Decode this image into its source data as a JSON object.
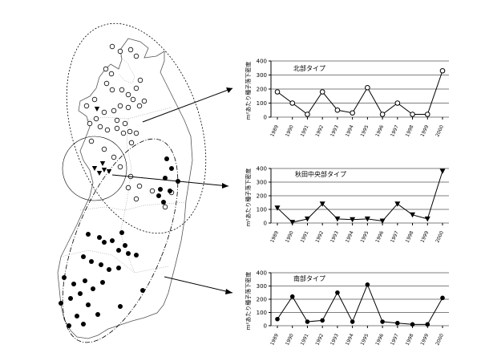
{
  "chart_data": [
    {
      "type": "line",
      "title": "北部タイプ",
      "ylabel": "m²あたり種子落下密度",
      "categories": [
        "1989",
        "1990",
        "1991",
        "1992",
        "1993",
        "1994",
        "1995",
        "1996",
        "1997",
        "1998",
        "1999",
        "2000"
      ],
      "ylim": [
        0,
        400
      ],
      "yticks": [
        0,
        100,
        200,
        300,
        400
      ],
      "marker": "circle-open",
      "values": [
        180,
        100,
        20,
        180,
        50,
        30,
        210,
        20,
        100,
        20,
        20,
        330
      ],
      "grid": true
    },
    {
      "type": "line",
      "title": "秋田中央部タイプ",
      "ylabel": "m²あたり種子落下密度",
      "categories": [
        "1989",
        "1990",
        "1991",
        "1992",
        "1993",
        "1994",
        "1995",
        "1996",
        "1997",
        "1998",
        "1999",
        "2000"
      ],
      "ylim": [
        0,
        400
      ],
      "yticks": [
        0,
        100,
        200,
        300,
        400
      ],
      "marker": "triangle-down",
      "values": [
        110,
        5,
        30,
        140,
        30,
        25,
        30,
        15,
        140,
        60,
        30,
        380
      ],
      "grid": true
    },
    {
      "type": "line",
      "title": "南部タイプ",
      "ylabel": "m²あたり種子落下密度",
      "categories": [
        "1989",
        "1990",
        "1991",
        "1992",
        "1993",
        "1994",
        "1995",
        "1996",
        "1997",
        "1998",
        "1999",
        "2000"
      ],
      "ylim": [
        0,
        400
      ],
      "yticks": [
        0,
        100,
        200,
        300,
        400
      ],
      "marker": "circle-filled",
      "values": [
        50,
        220,
        30,
        40,
        250,
        30,
        310,
        30,
        20,
        10,
        10,
        210
      ],
      "grid": true
    }
  ],
  "map": {
    "markers_legend": [
      "circle-open",
      "triangle-down",
      "circle-filled"
    ],
    "zones": [
      "北部タイプ",
      "秋田中央部タイプ",
      "南部タイプ"
    ]
  }
}
